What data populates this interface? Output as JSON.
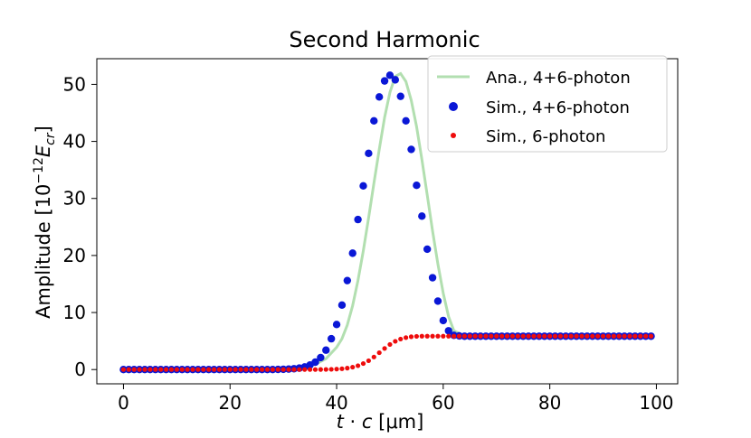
{
  "chart_data": {
    "type": "line",
    "title": "Second Harmonic",
    "xlabel": "t · c [μm]",
    "ylabel": "Amplitude [10⁻¹²E_cr]",
    "ylabel_parts": {
      "main": "Amplitude [10",
      "exp": "−12",
      "base": "E",
      "sub": "cr",
      "close": "]"
    },
    "xlabel_parts": {
      "a": "t",
      "dot": " · ",
      "b": "c",
      "rest": " [μm]"
    },
    "xlim": [
      -5,
      104
    ],
    "ylim": [
      -2.5,
      54.5
    ],
    "xticks": [
      0,
      20,
      40,
      60,
      80,
      100
    ],
    "yticks": [
      0,
      10,
      20,
      30,
      40,
      50
    ],
    "grid": false,
    "legend_position": "top-right",
    "series": [
      {
        "name": "Ana., 4+6-photon",
        "kind": "line",
        "color": "#b2dfb0",
        "x": [
          0,
          5,
          10,
          15,
          20,
          25,
          30,
          32,
          34,
          36,
          38,
          40,
          41,
          42,
          43,
          44,
          45,
          46,
          47,
          48,
          49,
          50,
          51,
          52,
          53,
          54,
          55,
          56,
          57,
          58,
          59,
          60,
          61,
          62,
          64,
          70,
          80,
          90,
          99
        ],
        "y": [
          0,
          0,
          0,
          0,
          0,
          0,
          0.05,
          0.15,
          0.4,
          0.9,
          1.9,
          3.9,
          5.4,
          7.8,
          11.2,
          15.6,
          20.8,
          26.6,
          32.7,
          38.6,
          44.2,
          48.6,
          51.4,
          51.9,
          50.5,
          47.2,
          42.6,
          36.8,
          30.6,
          24.3,
          18.5,
          13.4,
          9.3,
          6.8,
          5.9,
          5.85,
          5.8,
          5.8,
          5.8
        ]
      },
      {
        "name": "Sim., 4+6-photon",
        "kind": "scatter",
        "color": "#0a17d6",
        "x": [
          0,
          1,
          2,
          3,
          4,
          5,
          6,
          7,
          8,
          9,
          10,
          11,
          12,
          13,
          14,
          15,
          16,
          17,
          18,
          19,
          20,
          21,
          22,
          23,
          24,
          25,
          26,
          27,
          28,
          29,
          30,
          31,
          32,
          33,
          34,
          35,
          36,
          37,
          38,
          39,
          40,
          41,
          42,
          43,
          44,
          45,
          46,
          47,
          48,
          49,
          50,
          51,
          52,
          53,
          54,
          55,
          56,
          57,
          58,
          59,
          60,
          61,
          62,
          63,
          64,
          65,
          66,
          67,
          68,
          69,
          70,
          71,
          72,
          73,
          74,
          75,
          76,
          77,
          78,
          79,
          80,
          81,
          82,
          83,
          84,
          85,
          86,
          87,
          88,
          89,
          90,
          91,
          92,
          93,
          94,
          95,
          96,
          97,
          98,
          99
        ],
        "y": [
          0,
          0,
          0,
          0,
          0,
          0,
          0,
          0,
          0,
          0,
          0,
          0,
          0,
          0,
          0,
          0,
          0,
          0,
          0,
          0,
          0,
          0,
          0,
          0,
          0,
          0,
          0,
          0,
          0,
          0.02,
          0.05,
          0.08,
          0.15,
          0.25,
          0.45,
          0.8,
          1.3,
          2.1,
          3.4,
          5.4,
          7.9,
          11.3,
          15.6,
          20.4,
          26.3,
          32.2,
          37.9,
          43.6,
          47.8,
          50.6,
          51.6,
          50.8,
          47.9,
          43.6,
          38.6,
          32.3,
          26.9,
          21.1,
          16.1,
          12.0,
          8.6,
          6.8,
          6.0,
          5.9,
          5.85,
          5.85,
          5.85,
          5.85,
          5.85,
          5.85,
          5.85,
          5.85,
          5.85,
          5.85,
          5.85,
          5.85,
          5.85,
          5.85,
          5.85,
          5.85,
          5.85,
          5.85,
          5.85,
          5.85,
          5.85,
          5.85,
          5.85,
          5.85,
          5.85,
          5.85,
          5.85,
          5.85,
          5.85,
          5.85,
          5.85,
          5.85,
          5.85,
          5.85,
          5.85,
          5.85
        ]
      },
      {
        "name": "Sim., 6-photon",
        "kind": "scatter",
        "color": "#ee0c0c",
        "x": [
          0,
          1,
          2,
          3,
          4,
          5,
          6,
          7,
          8,
          9,
          10,
          11,
          12,
          13,
          14,
          15,
          16,
          17,
          18,
          19,
          20,
          21,
          22,
          23,
          24,
          25,
          26,
          27,
          28,
          29,
          30,
          31,
          32,
          33,
          34,
          35,
          36,
          37,
          38,
          39,
          40,
          41,
          42,
          43,
          44,
          45,
          46,
          47,
          48,
          49,
          50,
          51,
          52,
          53,
          54,
          55,
          56,
          57,
          58,
          59,
          60,
          61,
          62,
          63,
          64,
          65,
          66,
          67,
          68,
          69,
          70,
          71,
          72,
          73,
          74,
          75,
          76,
          77,
          78,
          79,
          80,
          81,
          82,
          83,
          84,
          85,
          86,
          87,
          88,
          89,
          90,
          91,
          92,
          93,
          94,
          95,
          96,
          97,
          98,
          99
        ],
        "y": [
          0,
          0,
          0,
          0,
          0,
          0,
          0,
          0,
          0,
          0,
          0,
          0,
          0,
          0,
          0,
          0,
          0,
          0,
          0,
          0,
          0,
          0,
          0,
          0,
          0,
          0,
          0,
          0,
          0,
          0,
          0,
          0,
          0,
          0,
          0,
          0,
          0,
          0.01,
          0.02,
          0.04,
          0.08,
          0.14,
          0.25,
          0.42,
          0.68,
          1.05,
          1.55,
          2.2,
          2.95,
          3.7,
          4.4,
          4.95,
          5.35,
          5.6,
          5.75,
          5.82,
          5.85,
          5.85,
          5.85,
          5.85,
          5.85,
          5.85,
          5.85,
          5.85,
          5.85,
          5.85,
          5.85,
          5.85,
          5.85,
          5.85,
          5.85,
          5.85,
          5.85,
          5.85,
          5.85,
          5.85,
          5.85,
          5.85,
          5.85,
          5.85,
          5.85,
          5.85,
          5.85,
          5.85,
          5.85,
          5.85,
          5.85,
          5.85,
          5.85,
          5.85,
          5.85,
          5.85,
          5.85,
          5.85,
          5.85,
          5.85,
          5.85,
          5.85,
          5.85,
          5.85
        ]
      }
    ]
  }
}
